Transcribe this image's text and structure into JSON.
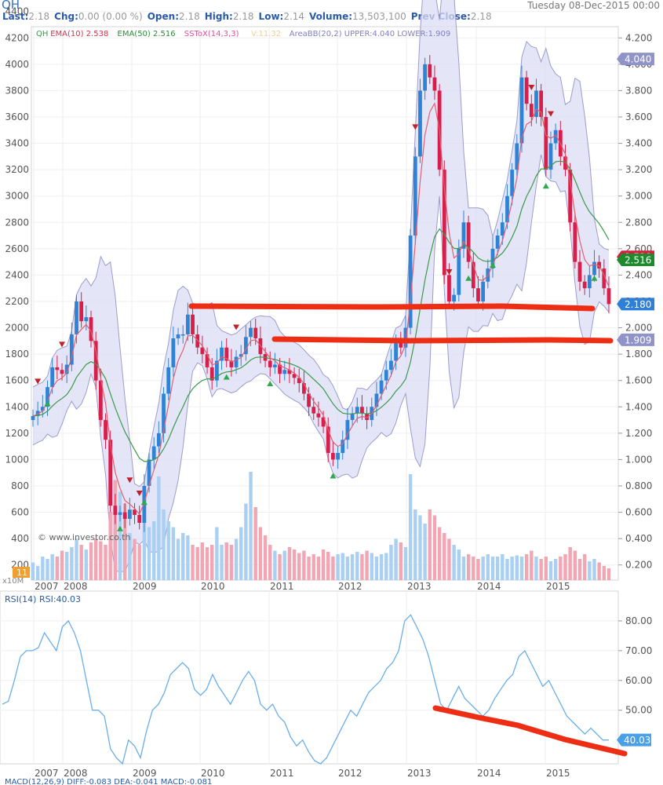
{
  "header": {
    "symbol": "QH",
    "date": "Tuesday 08-Dec-2015 00:00",
    "quote": [
      {
        "label": "Last:",
        "value": "2.18"
      },
      {
        "label": "Chg:",
        "value": "0.00 (0.00 %)"
      },
      {
        "label": "Open:",
        "value": "2.18"
      },
      {
        "label": "High:",
        "value": "2.18"
      },
      {
        "label": "Low:",
        "value": "2.14"
      },
      {
        "label": "Volume:",
        "value": "13,503,100"
      },
      {
        "label": "Prev Close:",
        "value": "2.18"
      }
    ]
  },
  "legend": [
    {
      "text": "QH",
      "color": "#2e9e4e"
    },
    {
      "text": "EMA(10) 2.538",
      "color": "#d9304a"
    },
    {
      "text": "EMA(50) 2.516",
      "color": "#2e8a3a"
    },
    {
      "text": "SSToX(14,3,3)",
      "color": "#e0509a"
    },
    {
      "text": "V:11.32",
      "color": "#f0d090"
    },
    {
      "text": "AreaBB(20,2) UPPER:4.040 LOWER:1.909",
      "color": "#8080c0"
    }
  ],
  "watermark": "© www.investor.co.th",
  "volume_badge": "11",
  "volume_unit": "x10M",
  "rsi_legend": "RSI(14) RSI:40.03",
  "bottom_legend": "MACD(12,26,9)  DIFF:-0.083  DEA:-0.041  MACD:-0.081",
  "colors": {
    "up": "#2f83d6",
    "down": "#d81e4a",
    "band_fill": "#dcdcf6",
    "band_line": "#9c9ccc",
    "ema10": "#e06070",
    "ema50": "#3a9a4a",
    "rsi": "#6aaee8",
    "annotation": "#ee2e14",
    "vol_up": "#a9cff2",
    "vol_down": "#f2a5b2"
  },
  "chart_data": [
    {
      "type": "candlestick",
      "title": "QH",
      "x_axis_labels": [
        "2007",
        "2008",
        "2009",
        "2010",
        "2011",
        "2012",
        "2013",
        "2014",
        "2015"
      ],
      "y_left_ticks": [
        "4400",
        "4200",
        "4000",
        "3800",
        "3600",
        "3400",
        "3200",
        "3000",
        "2800",
        "2600",
        "2400",
        "2200",
        "2000",
        "1800",
        "1600",
        "1400",
        "1200",
        "1000",
        "800",
        "600",
        "400",
        "200"
      ],
      "y_right_ticks": [
        "4.200",
        "4.000",
        "3.800",
        "3.600",
        "3.400",
        "3.200",
        "3.000",
        "2.800",
        "2.600",
        "2.400",
        "2.200",
        "2.000",
        "1.800",
        "1.600",
        "1.400",
        "1.200",
        "1.000",
        "0.800",
        "0.600",
        "0.400",
        "0.200"
      ],
      "ylim_right": [
        0.085,
        4.285
      ],
      "value_tags": [
        {
          "text": "4.040",
          "value": 4.04,
          "bg": "#8f93c8"
        },
        {
          "text": "2.538",
          "value": 2.538,
          "bg": "#d81e3a"
        },
        {
          "text": "2.516",
          "value": 2.516,
          "bg": "#1e8a2e"
        },
        {
          "text": "2.180",
          "value": 2.18,
          "bg": "#2f7fd6"
        },
        {
          "text": "1.909",
          "value": 1.909,
          "bg": "#8f93c8"
        }
      ],
      "closes": [
        1.33,
        1.37,
        1.4,
        1.55,
        1.7,
        1.68,
        1.65,
        1.72,
        1.95,
        2.2,
        2.05,
        2.08,
        1.9,
        1.6,
        1.3,
        1.15,
        0.65,
        0.58,
        0.6,
        0.55,
        0.62,
        0.58,
        0.52,
        0.8,
        1.0,
        1.1,
        1.2,
        1.5,
        1.7,
        1.92,
        1.95,
        1.95,
        2.1,
        1.95,
        1.85,
        1.8,
        1.7,
        1.6,
        1.75,
        1.85,
        1.75,
        1.7,
        1.78,
        1.8,
        1.93,
        2.0,
        1.92,
        1.8,
        1.75,
        1.7,
        1.72,
        1.65,
        1.68,
        1.65,
        1.62,
        1.58,
        1.5,
        1.4,
        1.35,
        1.32,
        1.25,
        1.05,
        1.0,
        1.05,
        1.15,
        1.3,
        1.35,
        1.4,
        1.35,
        1.3,
        1.4,
        1.5,
        1.6,
        1.68,
        1.75,
        1.9,
        1.85,
        2.0,
        2.7,
        3.3,
        3.8,
        4.0,
        3.9,
        3.8,
        3.2,
        2.4,
        2.2,
        2.25,
        2.6,
        2.8,
        2.5,
        2.3,
        2.2,
        2.35,
        2.45,
        2.6,
        2.7,
        2.8,
        3.0,
        3.2,
        3.4,
        3.9,
        3.7,
        3.6,
        3.8,
        3.6,
        3.2,
        3.4,
        3.5,
        3.3,
        3.2,
        2.8,
        2.5,
        2.35,
        2.3,
        2.4,
        2.5,
        2.45,
        2.3,
        2.18
      ],
      "volume": [
        1.5,
        1.2,
        2.0,
        1.8,
        2.2,
        2.0,
        2.5,
        2.4,
        2.8,
        3.5,
        3.0,
        2.6,
        3.2,
        3.5,
        3.3,
        3.0,
        5.8,
        8.5,
        7.5,
        6.5,
        4.0,
        3.5,
        3.0,
        5.5,
        4.5,
        5.0,
        8.8,
        6.0,
        5.0,
        4.5,
        3.5,
        4.0,
        3.8,
        3.0,
        2.8,
        3.2,
        2.8,
        3.0,
        4.5,
        3.0,
        3.2,
        3.0,
        3.5,
        4.5,
        6.5,
        9.2,
        6.2,
        4.5,
        3.8,
        3.0,
        2.5,
        2.2,
        2.5,
        2.8,
        2.6,
        2.3,
        2.5,
        2.0,
        2.2,
        2.0,
        2.6,
        2.4,
        2.0,
        2.2,
        2.3,
        2.0,
        2.2,
        2.4,
        2.2,
        2.5,
        2.3,
        2.0,
        2.2,
        2.3,
        3.0,
        3.5,
        3.2,
        2.8,
        9.0,
        6.0,
        5.5,
        4.8,
        6.0,
        5.5,
        4.5,
        4.0,
        3.5,
        3.0,
        2.6,
        2.0,
        2.2,
        2.0,
        1.8,
        2.0,
        2.2,
        2.0,
        2.0,
        2.2,
        1.8,
        2.0,
        2.1,
        2.0,
        2.2,
        2.5,
        2.0,
        1.8,
        2.0,
        1.6,
        1.8,
        2.0,
        2.2,
        2.8,
        2.5,
        1.8,
        2.2,
        1.6,
        1.8,
        1.5,
        1.2,
        1.0
      ]
    },
    {
      "type": "line",
      "title": "RSI(14)",
      "x_axis_labels": [
        "2007",
        "2008",
        "2009",
        "2010",
        "2011",
        "2012",
        "2013",
        "2014",
        "2015"
      ],
      "y_ticks": [
        "80.00",
        "70.00",
        "60.00",
        "50.00"
      ],
      "ylim": [
        32,
        90
      ],
      "last_tag": "40.03",
      "values": [
        52,
        53,
        60,
        68,
        70,
        70,
        71,
        76,
        73,
        70,
        78,
        80,
        76,
        70,
        60,
        50,
        50,
        48,
        37,
        34,
        32,
        40,
        38,
        34,
        43,
        50,
        52,
        56,
        62,
        64,
        66,
        64,
        57,
        55,
        57,
        62,
        58,
        55,
        52,
        56,
        60,
        63,
        60,
        52,
        50,
        52,
        48,
        46,
        41,
        38,
        40,
        36,
        33,
        32,
        34,
        38,
        42,
        46,
        50,
        48,
        52,
        56,
        58,
        60,
        64,
        66,
        70,
        80,
        82,
        78,
        74,
        68,
        60,
        52,
        50,
        54,
        58,
        54,
        52,
        50,
        48,
        50,
        54,
        57,
        60,
        62,
        68,
        70,
        66,
        62,
        58,
        60,
        56,
        52,
        48,
        46,
        44,
        42,
        44,
        42,
        40,
        40
      ]
    }
  ]
}
